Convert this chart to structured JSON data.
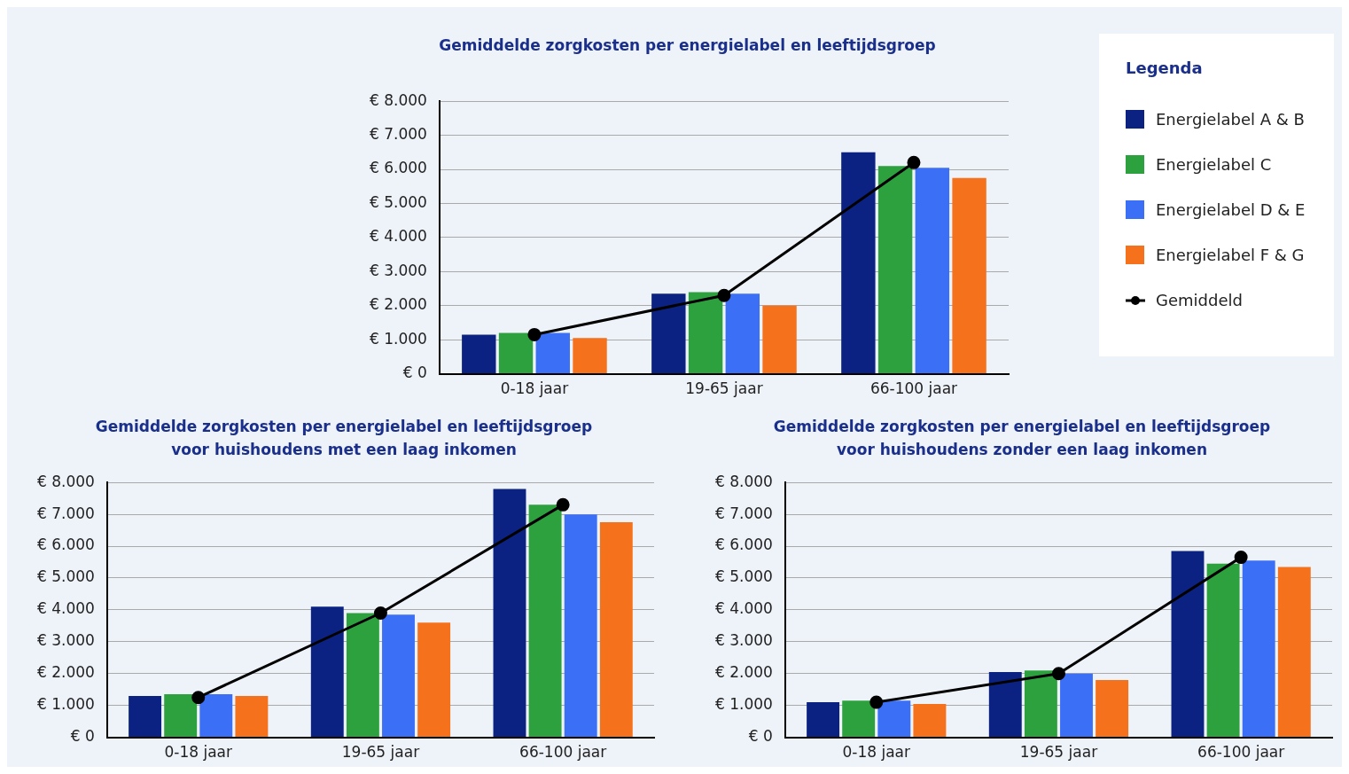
{
  "chart_data": [
    {
      "type": "bar",
      "title": "Gemiddelde zorgkosten per energielabel en leeftijdsgroep",
      "categories": [
        "0-18 jaar",
        "19-65 jaar",
        "66-100 jaar"
      ],
      "legend": "right",
      "legend_title": "Legenda",
      "grid": "y",
      "marker": "circle",
      "line_style": "solid",
      "ylim": [
        0,
        8000
      ],
      "yticks": [
        {
          "value": 0,
          "label": "€ 0"
        },
        {
          "value": 1000,
          "label": "€ 1.000"
        },
        {
          "value": 2000,
          "label": "€ 2.000"
        },
        {
          "value": 3000,
          "label": "€ 3.000"
        },
        {
          "value": 4000,
          "label": "€ 4.000"
        },
        {
          "value": 5000,
          "label": "€ 5.000"
        },
        {
          "value": 6000,
          "label": "€ 6.000"
        },
        {
          "value": 7000,
          "label": "€ 7.000"
        },
        {
          "value": 8000,
          "label": "€ 8.000"
        }
      ],
      "series": [
        {
          "name": "Energielabel A & B",
          "color": "#0b2283",
          "values": [
            1150,
            2350,
            6500
          ]
        },
        {
          "name": "Energielabel C",
          "color": "#2ea13f",
          "values": [
            1200,
            2400,
            6100
          ]
        },
        {
          "name": "Energielabel D & E",
          "color": "#3b6ff5",
          "values": [
            1200,
            2350,
            6050
          ]
        },
        {
          "name": "Energielabel F & G",
          "color": "#f5711c",
          "values": [
            1050,
            2000,
            5750
          ]
        },
        {
          "name": "Gemiddeld",
          "type": "line",
          "color": "#000000",
          "values": [
            1150,
            2300,
            6200
          ]
        }
      ]
    },
    {
      "type": "bar",
      "title": "Gemiddelde zorgkosten per energielabel en leeftijdsgroep voor huishoudens met een laag inkomen",
      "categories": [
        "0-18 jaar",
        "19-65 jaar",
        "66-100 jaar"
      ],
      "grid": "y",
      "marker": "circle",
      "line_style": "solid",
      "ylim": [
        0,
        8000
      ],
      "yticks": [
        {
          "value": 0,
          "label": "€ 0"
        },
        {
          "value": 1000,
          "label": "€ 1.000"
        },
        {
          "value": 2000,
          "label": "€ 2.000"
        },
        {
          "value": 3000,
          "label": "€ 3.000"
        },
        {
          "value": 4000,
          "label": "€ 4.000"
        },
        {
          "value": 5000,
          "label": "€ 5.000"
        },
        {
          "value": 6000,
          "label": "€ 6.000"
        },
        {
          "value": 7000,
          "label": "€ 7.000"
        },
        {
          "value": 8000,
          "label": "€ 8.000"
        }
      ],
      "series": [
        {
          "color": "#0b2283",
          "values": [
            1300,
            4100,
            7800
          ]
        },
        {
          "color": "#2ea13f",
          "values": [
            1350,
            3900,
            7300
          ]
        },
        {
          "color": "#3b6ff5",
          "values": [
            1350,
            3850,
            7000
          ]
        },
        {
          "color": "#f5711c",
          "values": [
            1300,
            3600,
            6750
          ]
        },
        {
          "type": "line",
          "color": "#000000",
          "values": [
            1250,
            3900,
            7300
          ]
        }
      ]
    },
    {
      "type": "bar",
      "title": "Gemiddelde zorgkosten per energielabel en leeftijdsgroep voor huishoudens zonder een laag inkomen",
      "categories": [
        "0-18 jaar",
        "19-65 jaar",
        "66-100 jaar"
      ],
      "grid": "y",
      "marker": "circle",
      "line_style": "solid",
      "ylim": [
        0,
        8000
      ],
      "yticks": [
        {
          "value": 0,
          "label": "€ 0"
        },
        {
          "value": 1000,
          "label": "€ 1.000"
        },
        {
          "value": 2000,
          "label": "€ 2.000"
        },
        {
          "value": 3000,
          "label": "€ 3.000"
        },
        {
          "value": 4000,
          "label": "€ 4.000"
        },
        {
          "value": 5000,
          "label": "€ 5.000"
        },
        {
          "value": 6000,
          "label": "€ 6.000"
        },
        {
          "value": 7000,
          "label": "€ 7.000"
        },
        {
          "value": 8000,
          "label": "€ 8.000"
        }
      ],
      "series": [
        {
          "color": "#0b2283",
          "values": [
            1100,
            2050,
            5850
          ]
        },
        {
          "color": "#2ea13f",
          "values": [
            1150,
            2100,
            5450
          ]
        },
        {
          "color": "#3b6ff5",
          "values": [
            1150,
            2000,
            5550
          ]
        },
        {
          "color": "#f5711c",
          "values": [
            1050,
            1800,
            5350
          ]
        },
        {
          "type": "line",
          "color": "#000000",
          "values": [
            1100,
            2000,
            5650
          ]
        }
      ]
    }
  ]
}
